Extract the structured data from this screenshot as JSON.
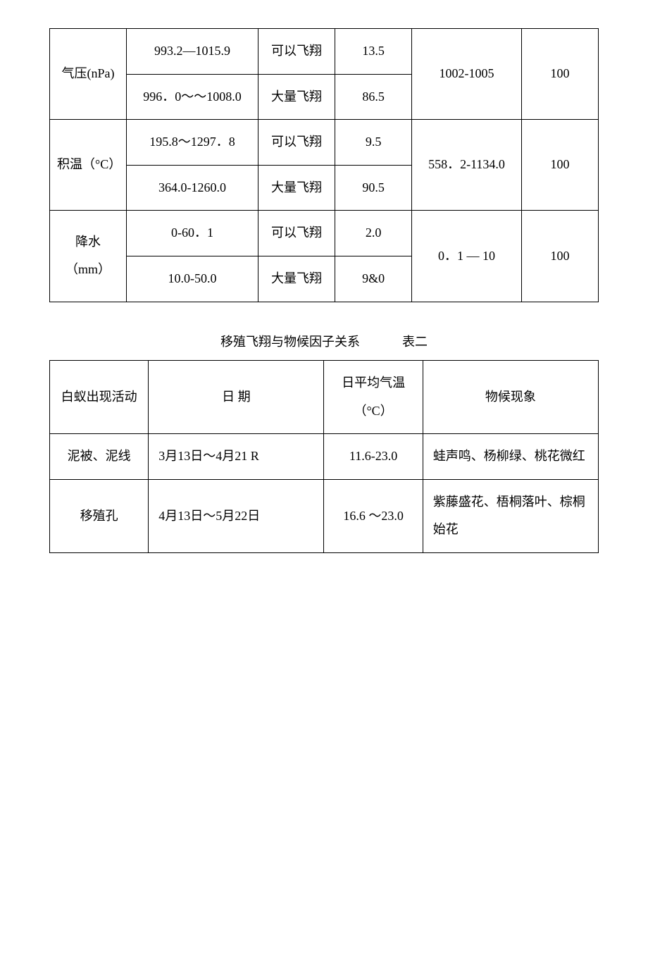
{
  "table1": {
    "rows": [
      {
        "factor": "气压(nPa)",
        "range1": "993.2—1015.9",
        "status1": "可以飞翔",
        "pct1": "13.5",
        "range2": "996．0～～1008.0",
        "status2": "大量飞翔",
        "pct2": "86.5",
        "optimal": "1002-1005",
        "total": "100"
      },
      {
        "factor": "积温（°C）",
        "range1": "195.8～1297．8",
        "status1": "可以飞翔",
        "pct1": "9.5",
        "range2": "364.0-1260.0",
        "status2": "大量飞翔",
        "pct2": "90.5",
        "optimal": "558．2-1134.0",
        "total": "100"
      },
      {
        "factor": "降水（mm）",
        "range1": "0-60．1",
        "status1": "可以飞翔",
        "pct1": "2.0",
        "range2": "10.0-50.0",
        "status2": "大量飞翔",
        "pct2": "9&0",
        "optimal": "0．1 — 10",
        "total": "100"
      }
    ]
  },
  "caption": {
    "title": "移殖飞翔与物候因子关系",
    "label": "表二"
  },
  "table2": {
    "header": {
      "c1": "白蚁出现活动",
      "c2": "日        期",
      "c3": "日平均气温（°C）",
      "c4": "物候现象"
    },
    "rows": [
      {
        "c1": "泥被、泥线",
        "c2": "3月13日～4月21 R",
        "c3": "11.6-23.0",
        "c4": "蛙声鸣、杨柳绿、桃花微红"
      },
      {
        "c1": "移殖孔",
        "c2": "4月13日～5月22日",
        "c3": "16.6 ～23.0",
        "c4": "  紫藤盛花、梧桐落叶、棕桐始花"
      }
    ]
  }
}
